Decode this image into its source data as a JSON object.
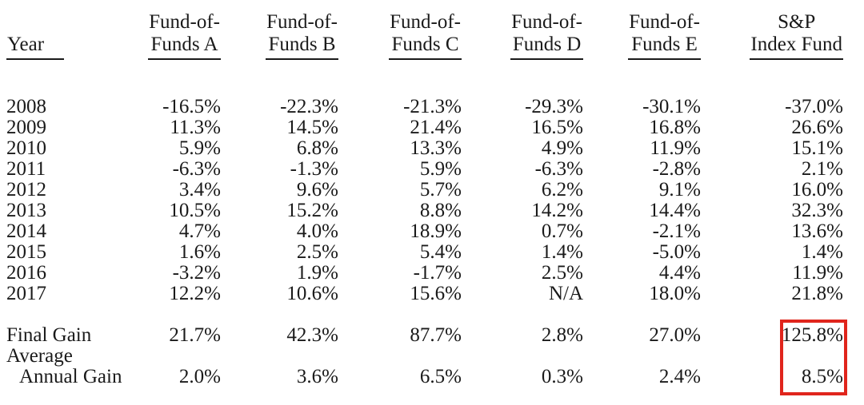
{
  "page": {
    "background_color": "#ffffff",
    "text_color": "#1a1a1a"
  },
  "table": {
    "headers": [
      {
        "line1": "",
        "line2": "Year"
      },
      {
        "line1": "Fund-of-",
        "line2": "Funds A"
      },
      {
        "line1": "Fund-of-",
        "line2": "Funds B"
      },
      {
        "line1": "Fund-of-",
        "line2": "Funds C"
      },
      {
        "line1": "Fund-of-",
        "line2": "Funds D"
      },
      {
        "line1": "Fund-of-",
        "line2": "Funds E"
      },
      {
        "line1": "S&P",
        "line2": "Index Fund"
      }
    ],
    "rows": [
      [
        "2008",
        "-16.5%",
        "-22.3%",
        "-21.3%",
        "-29.3%",
        "-30.1%",
        "-37.0%"
      ],
      [
        "2009",
        "11.3%",
        "14.5%",
        "21.4%",
        "16.5%",
        "16.8%",
        "26.6%"
      ],
      [
        "2010",
        "5.9%",
        "6.8%",
        "13.3%",
        "4.9%",
        "11.9%",
        "15.1%"
      ],
      [
        "2011",
        "-6.3%",
        "-1.3%",
        "5.9%",
        "-6.3%",
        "-2.8%",
        "2.1%"
      ],
      [
        "2012",
        "3.4%",
        "9.6%",
        "5.7%",
        "6.2%",
        "9.1%",
        "16.0%"
      ],
      [
        "2013",
        "10.5%",
        "15.2%",
        "8.8%",
        "14.2%",
        "14.4%",
        "32.3%"
      ],
      [
        "2014",
        "4.7%",
        "4.0%",
        "18.9%",
        "0.7%",
        "-2.1%",
        "13.6%"
      ],
      [
        "2015",
        "1.6%",
        "2.5%",
        "5.4%",
        "1.4%",
        "-5.0%",
        "1.4%"
      ],
      [
        "2016",
        "-3.2%",
        "1.9%",
        "-1.7%",
        "2.5%",
        "4.4%",
        "11.9%"
      ],
      [
        "2017",
        "12.2%",
        "10.6%",
        "15.6%",
        "N/A",
        "18.0%",
        "21.8%"
      ]
    ],
    "summary_rows": [
      [
        "Final Gain",
        "21.7%",
        "42.3%",
        "87.7%",
        "2.8%",
        "27.0%",
        "125.8%"
      ],
      [
        "Average",
        "",
        "",
        "",
        "",
        "",
        ""
      ],
      [
        "Annual Gain",
        "2.0%",
        "3.6%",
        "6.5%",
        "0.3%",
        "2.4%",
        "8.5%"
      ]
    ]
  },
  "highlight": {
    "border_color": "#e0251c",
    "highlighted_values": [
      "125.8%",
      "8.5%"
    ],
    "highlighted_column": "S&P Index Fund"
  }
}
